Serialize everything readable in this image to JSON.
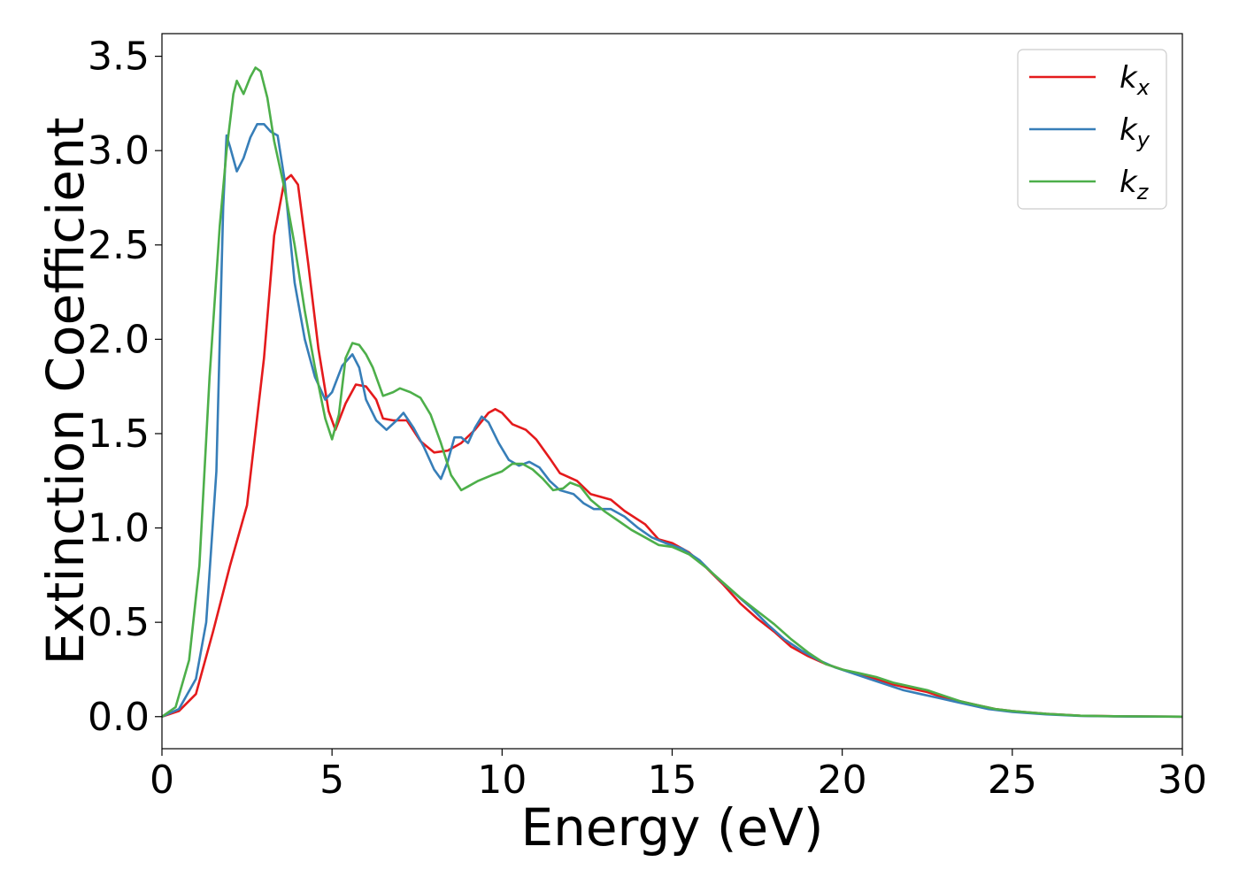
{
  "chart_data": {
    "type": "line",
    "xlabel": "Energy (eV)",
    "ylabel": "Extinction Coefficient",
    "xlim": [
      0,
      30
    ],
    "ylim": [
      -0.17,
      3.62
    ],
    "xticks": [
      0,
      5,
      10,
      15,
      20,
      25,
      30
    ],
    "xtick_labels": [
      "0",
      "5",
      "10",
      "15",
      "20",
      "25",
      "30"
    ],
    "yticks": [
      0.0,
      0.5,
      1.0,
      1.5,
      2.0,
      2.5,
      3.0,
      3.5
    ],
    "ytick_labels": [
      "0.0",
      "0.5",
      "1.0",
      "1.5",
      "2.0",
      "2.5",
      "3.0",
      "3.5"
    ],
    "grid": false,
    "legend_position": "top-right",
    "series": [
      {
        "name": "k",
        "subscript": "x",
        "color": "#e41a1c",
        "points": [
          [
            0,
            0
          ],
          [
            0.5,
            0.03
          ],
          [
            1.0,
            0.12
          ],
          [
            1.5,
            0.45
          ],
          [
            2.0,
            0.8
          ],
          [
            2.5,
            1.12
          ],
          [
            3.0,
            1.9
          ],
          [
            3.3,
            2.55
          ],
          [
            3.6,
            2.84
          ],
          [
            3.8,
            2.87
          ],
          [
            4.0,
            2.82
          ],
          [
            4.3,
            2.4
          ],
          [
            4.6,
            1.95
          ],
          [
            4.9,
            1.62
          ],
          [
            5.1,
            1.52
          ],
          [
            5.4,
            1.66
          ],
          [
            5.7,
            1.76
          ],
          [
            6.0,
            1.75
          ],
          [
            6.3,
            1.68
          ],
          [
            6.5,
            1.58
          ],
          [
            6.8,
            1.57
          ],
          [
            7.2,
            1.57
          ],
          [
            7.6,
            1.46
          ],
          [
            8.0,
            1.4
          ],
          [
            8.4,
            1.41
          ],
          [
            8.8,
            1.45
          ],
          [
            9.2,
            1.52
          ],
          [
            9.6,
            1.61
          ],
          [
            9.8,
            1.63
          ],
          [
            10.0,
            1.61
          ],
          [
            10.3,
            1.55
          ],
          [
            10.7,
            1.52
          ],
          [
            11.0,
            1.47
          ],
          [
            11.4,
            1.37
          ],
          [
            11.7,
            1.29
          ],
          [
            12.2,
            1.25
          ],
          [
            12.6,
            1.18
          ],
          [
            13.2,
            1.15
          ],
          [
            13.6,
            1.09
          ],
          [
            14.2,
            1.02
          ],
          [
            14.6,
            0.94
          ],
          [
            15.0,
            0.92
          ],
          [
            15.5,
            0.87
          ],
          [
            16.0,
            0.79
          ],
          [
            16.5,
            0.7
          ],
          [
            17.0,
            0.6
          ],
          [
            17.5,
            0.52
          ],
          [
            18.0,
            0.45
          ],
          [
            18.5,
            0.37
          ],
          [
            19.0,
            0.32
          ],
          [
            19.5,
            0.28
          ],
          [
            20.0,
            0.25
          ],
          [
            20.5,
            0.22
          ],
          [
            21.0,
            0.2
          ],
          [
            21.5,
            0.17
          ],
          [
            22.0,
            0.15
          ],
          [
            22.5,
            0.13
          ],
          [
            23.0,
            0.1
          ],
          [
            23.5,
            0.08
          ],
          [
            24.0,
            0.06
          ],
          [
            24.5,
            0.04
          ],
          [
            25.0,
            0.03
          ],
          [
            26.0,
            0.015
          ],
          [
            27.0,
            0.005
          ],
          [
            28.0,
            0.002
          ],
          [
            30.0,
            0.0
          ]
        ]
      },
      {
        "name": "k",
        "subscript": "y",
        "color": "#377eb8",
        "points": [
          [
            0,
            0
          ],
          [
            0.5,
            0.04
          ],
          [
            1.0,
            0.2
          ],
          [
            1.3,
            0.5
          ],
          [
            1.6,
            1.3
          ],
          [
            1.8,
            2.7
          ],
          [
            1.9,
            3.08
          ],
          [
            2.0,
            3.02
          ],
          [
            2.2,
            2.89
          ],
          [
            2.4,
            2.96
          ],
          [
            2.6,
            3.07
          ],
          [
            2.8,
            3.14
          ],
          [
            3.0,
            3.14
          ],
          [
            3.2,
            3.1
          ],
          [
            3.4,
            3.08
          ],
          [
            3.6,
            2.85
          ],
          [
            3.9,
            2.3
          ],
          [
            4.2,
            2.0
          ],
          [
            4.5,
            1.8
          ],
          [
            4.8,
            1.68
          ],
          [
            5.0,
            1.72
          ],
          [
            5.3,
            1.86
          ],
          [
            5.6,
            1.92
          ],
          [
            5.8,
            1.85
          ],
          [
            6.0,
            1.68
          ],
          [
            6.3,
            1.57
          ],
          [
            6.6,
            1.52
          ],
          [
            6.9,
            1.57
          ],
          [
            7.1,
            1.61
          ],
          [
            7.4,
            1.53
          ],
          [
            7.7,
            1.43
          ],
          [
            8.0,
            1.31
          ],
          [
            8.2,
            1.26
          ],
          [
            8.4,
            1.35
          ],
          [
            8.6,
            1.48
          ],
          [
            8.8,
            1.48
          ],
          [
            9.0,
            1.45
          ],
          [
            9.2,
            1.53
          ],
          [
            9.4,
            1.59
          ],
          [
            9.6,
            1.56
          ],
          [
            9.9,
            1.45
          ],
          [
            10.2,
            1.36
          ],
          [
            10.5,
            1.33
          ],
          [
            10.8,
            1.35
          ],
          [
            11.1,
            1.32
          ],
          [
            11.4,
            1.25
          ],
          [
            11.7,
            1.2
          ],
          [
            12.1,
            1.18
          ],
          [
            12.4,
            1.13
          ],
          [
            12.7,
            1.1
          ],
          [
            13.2,
            1.1
          ],
          [
            13.6,
            1.06
          ],
          [
            14.0,
            1.0
          ],
          [
            14.4,
            0.95
          ],
          [
            14.8,
            0.92
          ],
          [
            15.3,
            0.89
          ],
          [
            15.8,
            0.83
          ],
          [
            16.3,
            0.74
          ],
          [
            16.8,
            0.66
          ],
          [
            17.3,
            0.58
          ],
          [
            17.8,
            0.49
          ],
          [
            18.3,
            0.41
          ],
          [
            18.8,
            0.35
          ],
          [
            19.3,
            0.3
          ],
          [
            19.8,
            0.26
          ],
          [
            20.3,
            0.23
          ],
          [
            20.8,
            0.2
          ],
          [
            21.3,
            0.17
          ],
          [
            21.8,
            0.14
          ],
          [
            22.3,
            0.12
          ],
          [
            22.8,
            0.1
          ],
          [
            23.3,
            0.08
          ],
          [
            23.8,
            0.06
          ],
          [
            24.3,
            0.04
          ],
          [
            25.0,
            0.025
          ],
          [
            26.0,
            0.012
          ],
          [
            27.0,
            0.004
          ],
          [
            28.0,
            0.001
          ],
          [
            30.0,
            0.0
          ]
        ]
      },
      {
        "name": "k",
        "subscript": "z",
        "color": "#4daf4a",
        "points": [
          [
            0,
            0
          ],
          [
            0.4,
            0.05
          ],
          [
            0.8,
            0.3
          ],
          [
            1.1,
            0.8
          ],
          [
            1.4,
            1.8
          ],
          [
            1.7,
            2.6
          ],
          [
            1.9,
            3.0
          ],
          [
            2.1,
            3.3
          ],
          [
            2.2,
            3.37
          ],
          [
            2.4,
            3.3
          ],
          [
            2.6,
            3.39
          ],
          [
            2.75,
            3.44
          ],
          [
            2.9,
            3.42
          ],
          [
            3.1,
            3.28
          ],
          [
            3.3,
            3.05
          ],
          [
            3.6,
            2.8
          ],
          [
            3.9,
            2.5
          ],
          [
            4.2,
            2.15
          ],
          [
            4.5,
            1.85
          ],
          [
            4.8,
            1.58
          ],
          [
            5.0,
            1.47
          ],
          [
            5.2,
            1.6
          ],
          [
            5.4,
            1.9
          ],
          [
            5.6,
            1.98
          ],
          [
            5.8,
            1.97
          ],
          [
            6.0,
            1.92
          ],
          [
            6.2,
            1.85
          ],
          [
            6.5,
            1.7
          ],
          [
            6.8,
            1.72
          ],
          [
            7.0,
            1.74
          ],
          [
            7.3,
            1.72
          ],
          [
            7.6,
            1.69
          ],
          [
            7.9,
            1.6
          ],
          [
            8.2,
            1.45
          ],
          [
            8.5,
            1.28
          ],
          [
            8.8,
            1.2
          ],
          [
            9.0,
            1.22
          ],
          [
            9.3,
            1.25
          ],
          [
            9.7,
            1.28
          ],
          [
            10.0,
            1.3
          ],
          [
            10.3,
            1.34
          ],
          [
            10.6,
            1.34
          ],
          [
            10.9,
            1.31
          ],
          [
            11.2,
            1.26
          ],
          [
            11.5,
            1.2
          ],
          [
            11.8,
            1.21
          ],
          [
            12.0,
            1.24
          ],
          [
            12.3,
            1.22
          ],
          [
            12.6,
            1.15
          ],
          [
            13.0,
            1.09
          ],
          [
            13.4,
            1.04
          ],
          [
            13.8,
            0.99
          ],
          [
            14.2,
            0.95
          ],
          [
            14.6,
            0.91
          ],
          [
            15.0,
            0.9
          ],
          [
            15.5,
            0.86
          ],
          [
            16.0,
            0.79
          ],
          [
            16.5,
            0.71
          ],
          [
            17.0,
            0.63
          ],
          [
            17.5,
            0.56
          ],
          [
            18.0,
            0.49
          ],
          [
            18.5,
            0.41
          ],
          [
            19.0,
            0.34
          ],
          [
            19.5,
            0.28
          ],
          [
            20.0,
            0.25
          ],
          [
            20.5,
            0.23
          ],
          [
            21.0,
            0.21
          ],
          [
            21.5,
            0.18
          ],
          [
            22.0,
            0.16
          ],
          [
            22.5,
            0.14
          ],
          [
            23.0,
            0.11
          ],
          [
            23.5,
            0.08
          ],
          [
            24.0,
            0.06
          ],
          [
            24.5,
            0.04
          ],
          [
            25.0,
            0.03
          ],
          [
            26.0,
            0.015
          ],
          [
            27.0,
            0.005
          ],
          [
            28.0,
            0.002
          ],
          [
            30.0,
            0.0
          ]
        ]
      }
    ]
  }
}
